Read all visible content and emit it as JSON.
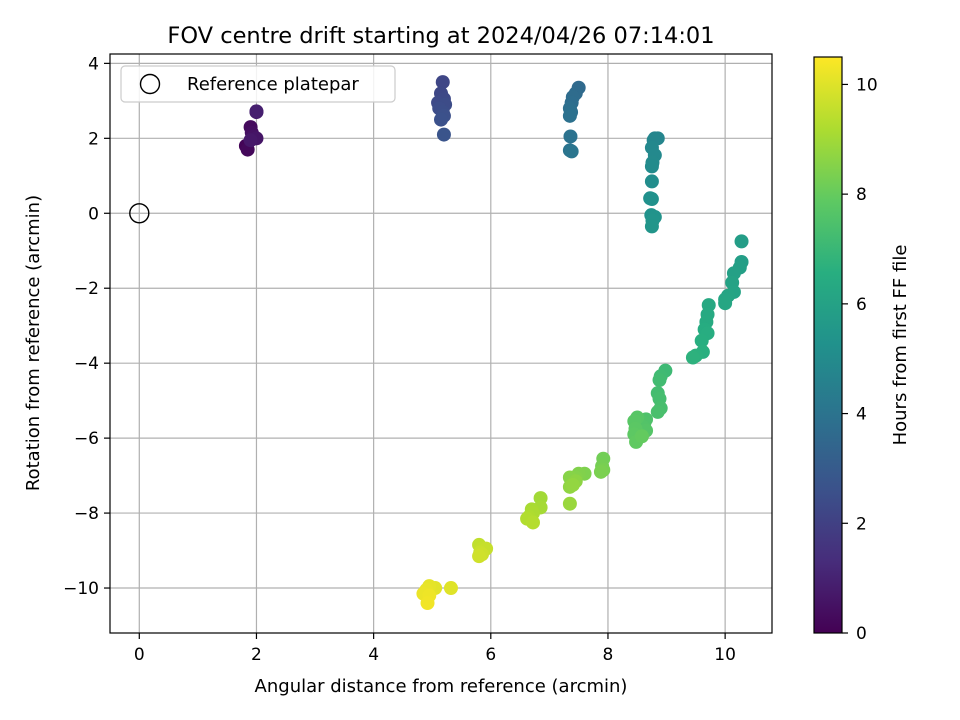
{
  "chart_data": {
    "type": "scatter",
    "title": "FOV centre drift starting at 2024/04/26 07:14:01",
    "xlabel": "Angular distance from reference (arcmin)",
    "ylabel": "Rotation from reference (arcmin)",
    "xlim": [
      -0.5,
      10.8
    ],
    "ylim": [
      -11.2,
      4.25
    ],
    "xticks": [
      0,
      2,
      4,
      6,
      8,
      10
    ],
    "yticks": [
      -10,
      -8,
      -6,
      -4,
      -2,
      0,
      2,
      4
    ],
    "xtick_labels": [
      "0",
      "2",
      "4",
      "6",
      "8",
      "10"
    ],
    "ytick_labels": [
      "−10",
      "−8",
      "−6",
      "−4",
      "−2",
      "0",
      "2",
      "4"
    ],
    "grid": true,
    "legend": {
      "position": "top-left",
      "label": "Reference platepar"
    },
    "reference_point": {
      "x": 0,
      "y": 0
    },
    "colorbar": {
      "label": "Hours from first FF file",
      "range": [
        0,
        10.5
      ],
      "ticks": [
        0,
        2,
        4,
        6,
        8,
        10
      ],
      "tick_labels": [
        "0",
        "2",
        "4",
        "6",
        "8",
        "10"
      ],
      "colormap": "viridis"
    },
    "points": [
      {
        "x": 1.82,
        "y": 1.8,
        "h": 0.1
      },
      {
        "x": 1.85,
        "y": 1.7,
        "h": 0.2
      },
      {
        "x": 1.9,
        "y": 2.3,
        "h": 0.3
      },
      {
        "x": 1.92,
        "y": 2.15,
        "h": 0.4
      },
      {
        "x": 1.95,
        "y": 2.05,
        "h": 0.5
      },
      {
        "x": 2.0,
        "y": 2.0,
        "h": 0.6
      },
      {
        "x": 1.9,
        "y": 1.95,
        "h": 0.7
      },
      {
        "x": 2.0,
        "y": 2.7,
        "h": 0.8
      },
      {
        "x": 2.0,
        "y": 2.72,
        "h": 0.9
      },
      {
        "x": 5.18,
        "y": 3.5,
        "h": 2.2
      },
      {
        "x": 5.15,
        "y": 3.2,
        "h": 2.25
      },
      {
        "x": 5.2,
        "y": 3.05,
        "h": 2.3
      },
      {
        "x": 5.1,
        "y": 2.95,
        "h": 2.35
      },
      {
        "x": 5.22,
        "y": 2.9,
        "h": 2.4
      },
      {
        "x": 5.12,
        "y": 2.8,
        "h": 2.45
      },
      {
        "x": 5.18,
        "y": 2.7,
        "h": 2.5
      },
      {
        "x": 5.2,
        "y": 2.6,
        "h": 2.55
      },
      {
        "x": 5.15,
        "y": 2.5,
        "h": 2.6
      },
      {
        "x": 5.2,
        "y": 2.1,
        "h": 2.7
      },
      {
        "x": 7.5,
        "y": 3.35,
        "h": 3.6
      },
      {
        "x": 7.45,
        "y": 3.2,
        "h": 3.65
      },
      {
        "x": 7.4,
        "y": 3.1,
        "h": 3.7
      },
      {
        "x": 7.38,
        "y": 2.95,
        "h": 3.75
      },
      {
        "x": 7.35,
        "y": 2.8,
        "h": 3.8
      },
      {
        "x": 7.37,
        "y": 2.7,
        "h": 3.85
      },
      {
        "x": 7.35,
        "y": 2.6,
        "h": 3.9
      },
      {
        "x": 7.36,
        "y": 2.05,
        "h": 3.95
      },
      {
        "x": 7.35,
        "y": 1.68,
        "h": 4.0
      },
      {
        "x": 7.38,
        "y": 1.65,
        "h": 4.05
      },
      {
        "x": 8.8,
        "y": 2.0,
        "h": 4.7
      },
      {
        "x": 8.85,
        "y": 2.0,
        "h": 4.75
      },
      {
        "x": 8.78,
        "y": 1.95,
        "h": 4.8
      },
      {
        "x": 8.75,
        "y": 1.75,
        "h": 4.85
      },
      {
        "x": 8.8,
        "y": 1.55,
        "h": 4.9
      },
      {
        "x": 8.76,
        "y": 1.35,
        "h": 4.95
      },
      {
        "x": 8.75,
        "y": 1.25,
        "h": 5.0
      },
      {
        "x": 8.75,
        "y": 0.85,
        "h": 5.1
      },
      {
        "x": 8.72,
        "y": 0.4,
        "h": 5.2
      },
      {
        "x": 8.75,
        "y": 0.38,
        "h": 5.25
      },
      {
        "x": 8.74,
        "y": -0.05,
        "h": 5.3
      },
      {
        "x": 8.8,
        "y": -0.1,
        "h": 5.35
      },
      {
        "x": 8.76,
        "y": -0.2,
        "h": 5.4
      },
      {
        "x": 8.75,
        "y": -0.35,
        "h": 5.45
      },
      {
        "x": 10.28,
        "y": -0.75,
        "h": 5.8
      },
      {
        "x": 10.28,
        "y": -1.3,
        "h": 5.85
      },
      {
        "x": 10.25,
        "y": -1.45,
        "h": 5.9
      },
      {
        "x": 10.15,
        "y": -1.6,
        "h": 5.95
      },
      {
        "x": 10.12,
        "y": -1.85,
        "h": 6.0
      },
      {
        "x": 10.15,
        "y": -2.1,
        "h": 6.05
      },
      {
        "x": 10.05,
        "y": -2.2,
        "h": 6.1
      },
      {
        "x": 10.0,
        "y": -2.3,
        "h": 6.15
      },
      {
        "x": 10.0,
        "y": -2.4,
        "h": 6.2
      },
      {
        "x": 9.72,
        "y": -2.45,
        "h": 6.3
      },
      {
        "x": 9.7,
        "y": -2.7,
        "h": 6.35
      },
      {
        "x": 9.68,
        "y": -2.9,
        "h": 6.4
      },
      {
        "x": 9.65,
        "y": -3.1,
        "h": 6.45
      },
      {
        "x": 9.7,
        "y": -3.2,
        "h": 6.5
      },
      {
        "x": 9.6,
        "y": -3.4,
        "h": 6.55
      },
      {
        "x": 9.62,
        "y": -3.7,
        "h": 6.6
      },
      {
        "x": 9.5,
        "y": -3.8,
        "h": 6.65
      },
      {
        "x": 9.45,
        "y": -3.85,
        "h": 6.7
      },
      {
        "x": 8.98,
        "y": -4.2,
        "h": 7.1
      },
      {
        "x": 8.9,
        "y": -4.35,
        "h": 7.15
      },
      {
        "x": 8.88,
        "y": -4.45,
        "h": 7.2
      },
      {
        "x": 8.85,
        "y": -4.8,
        "h": 7.25
      },
      {
        "x": 8.88,
        "y": -4.95,
        "h": 7.3
      },
      {
        "x": 8.9,
        "y": -5.2,
        "h": 7.35
      },
      {
        "x": 8.85,
        "y": -5.3,
        "h": 7.4
      },
      {
        "x": 8.65,
        "y": -5.5,
        "h": 7.5
      },
      {
        "x": 8.62,
        "y": -5.6,
        "h": 7.55
      },
      {
        "x": 8.6,
        "y": -5.7,
        "h": 7.6
      },
      {
        "x": 8.65,
        "y": -5.8,
        "h": 7.65
      },
      {
        "x": 8.5,
        "y": -5.45,
        "h": 7.7
      },
      {
        "x": 8.45,
        "y": -5.55,
        "h": 7.75
      },
      {
        "x": 8.47,
        "y": -5.75,
        "h": 7.8
      },
      {
        "x": 8.45,
        "y": -5.9,
        "h": 7.85
      },
      {
        "x": 8.48,
        "y": -6.1,
        "h": 7.9
      },
      {
        "x": 8.58,
        "y": -5.95,
        "h": 7.95
      },
      {
        "x": 7.92,
        "y": -6.55,
        "h": 8.2
      },
      {
        "x": 7.9,
        "y": -6.75,
        "h": 8.25
      },
      {
        "x": 7.92,
        "y": -6.85,
        "h": 8.3
      },
      {
        "x": 7.88,
        "y": -6.9,
        "h": 8.35
      },
      {
        "x": 7.6,
        "y": -6.95,
        "h": 8.4
      },
      {
        "x": 7.5,
        "y": -6.95,
        "h": 8.45
      },
      {
        "x": 7.45,
        "y": -7.05,
        "h": 8.5
      },
      {
        "x": 7.35,
        "y": -7.05,
        "h": 8.55
      },
      {
        "x": 7.4,
        "y": -7.2,
        "h": 8.6
      },
      {
        "x": 7.45,
        "y": -7.15,
        "h": 8.65
      },
      {
        "x": 7.35,
        "y": -7.3,
        "h": 8.7
      },
      {
        "x": 7.4,
        "y": -7.25,
        "h": 8.75
      },
      {
        "x": 7.35,
        "y": -7.75,
        "h": 8.85
      },
      {
        "x": 6.85,
        "y": -7.6,
        "h": 9.0
      },
      {
        "x": 6.85,
        "y": -7.85,
        "h": 9.05
      },
      {
        "x": 6.7,
        "y": -7.9,
        "h": 9.1
      },
      {
        "x": 6.72,
        "y": -8.0,
        "h": 9.15
      },
      {
        "x": 6.65,
        "y": -8.1,
        "h": 9.2
      },
      {
        "x": 6.62,
        "y": -8.15,
        "h": 9.25
      },
      {
        "x": 6.72,
        "y": -8.25,
        "h": 9.3
      },
      {
        "x": 5.8,
        "y": -8.85,
        "h": 9.5
      },
      {
        "x": 5.85,
        "y": -8.95,
        "h": 9.55
      },
      {
        "x": 5.92,
        "y": -8.95,
        "h": 9.6
      },
      {
        "x": 5.82,
        "y": -9.05,
        "h": 9.65
      },
      {
        "x": 5.85,
        "y": -9.1,
        "h": 9.7
      },
      {
        "x": 5.8,
        "y": -9.15,
        "h": 9.75
      },
      {
        "x": 5.32,
        "y": -10.0,
        "h": 10.0
      },
      {
        "x": 5.05,
        "y": -10.0,
        "h": 10.05
      },
      {
        "x": 4.95,
        "y": -9.95,
        "h": 10.1
      },
      {
        "x": 4.9,
        "y": -10.05,
        "h": 10.15
      },
      {
        "x": 4.85,
        "y": -10.15,
        "h": 10.2
      },
      {
        "x": 4.95,
        "y": -10.2,
        "h": 10.25
      },
      {
        "x": 4.92,
        "y": -10.4,
        "h": 10.3
      }
    ]
  }
}
